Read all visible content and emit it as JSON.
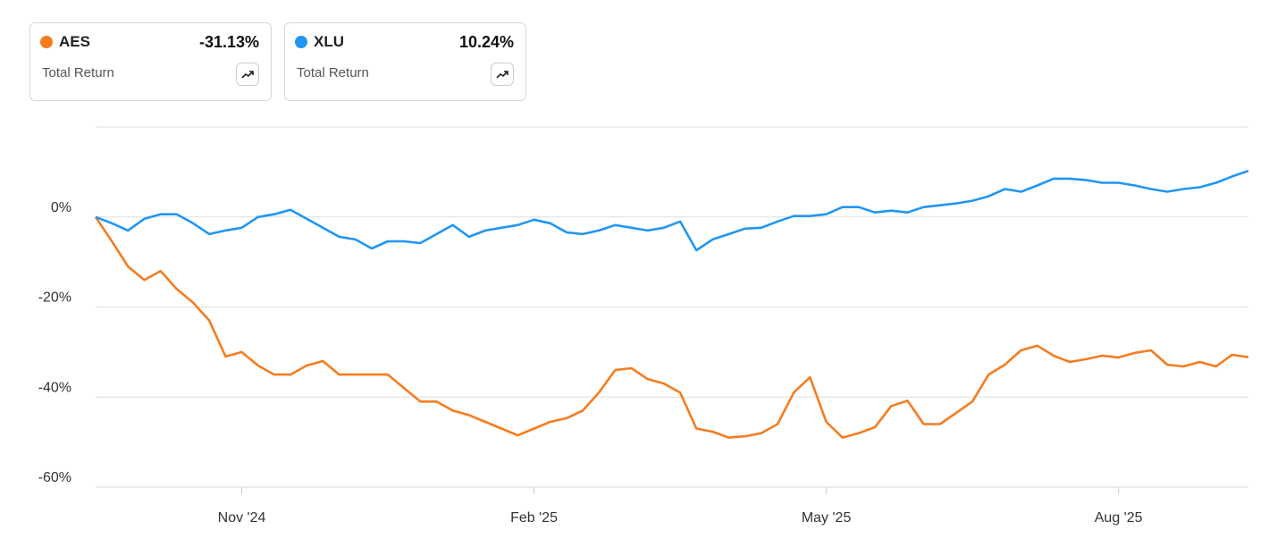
{
  "chart_data": {
    "type": "line",
    "categories": [
      null,
      null,
      null,
      null,
      null,
      null,
      null,
      null,
      null,
      "Nov '24",
      null,
      null,
      null,
      null,
      null,
      null,
      null,
      null,
      null,
      null,
      null,
      null,
      null,
      null,
      null,
      null,
      null,
      "Feb '25",
      null,
      null,
      null,
      null,
      null,
      null,
      null,
      null,
      null,
      null,
      null,
      null,
      null,
      null,
      null,
      null,
      null,
      "May '25",
      null,
      null,
      null,
      null,
      null,
      null,
      null,
      null,
      null,
      null,
      null,
      null,
      null,
      null,
      null,
      null,
      null,
      "Aug '25",
      null,
      null,
      null,
      null,
      null,
      null,
      null,
      null
    ],
    "series": [
      {
        "name": "AES",
        "color": "#f57c1f",
        "summary": -31.13,
        "summary_label": "-31.13%",
        "summary_caption": "Total Return",
        "values": [
          0,
          -5.4,
          -11,
          -14,
          -12,
          -16,
          -19,
          -23,
          -31,
          -30,
          -33,
          -35,
          -35,
          -33,
          -32,
          -35,
          -35,
          -35,
          -35,
          -38,
          -41,
          -41,
          -43,
          -44,
          -45.5,
          -47,
          -48.5,
          -47,
          -45.5,
          -44.7,
          -43,
          -39,
          -34,
          -33.6,
          -36,
          -37,
          -39,
          -47,
          -47.7,
          -49,
          -48.7,
          -48,
          -46,
          -39,
          -35.6,
          -45.5,
          -49,
          -48,
          -46.7,
          -42,
          -40.8,
          -46,
          -46,
          -43.5,
          -41,
          -35,
          -32.8,
          -29.6,
          -28.6,
          -30.8,
          -32.2,
          -31.6,
          -30.8,
          -31.2,
          -30.2,
          -29.6,
          -32.8,
          -33.2,
          -32.2,
          -33.2,
          -30.6,
          -31.13
        ]
      },
      {
        "name": "XLU",
        "color": "#2196f3",
        "summary": 10.24,
        "summary_label": "10.24%",
        "summary_caption": "Total Return",
        "values": [
          0,
          -1.4,
          -3,
          -0.4,
          0.6,
          0.6,
          -1.4,
          -3.8,
          -3,
          -2.4,
          0,
          0.6,
          1.6,
          -0.4,
          -2.4,
          -4.4,
          -5,
          -7,
          -5.4,
          -5.4,
          -5.8,
          -3.8,
          -1.8,
          -4.4,
          -3,
          -2.4,
          -1.8,
          -0.6,
          -1.4,
          -3.4,
          -3.8,
          -3,
          -1.8,
          -2.4,
          -3,
          -2.4,
          -1,
          -7.4,
          -5,
          -3.8,
          -2.6,
          -2.4,
          -1,
          0.2,
          0.2,
          0.6,
          2.2,
          2.2,
          1,
          1.4,
          1,
          2.2,
          2.6,
          3,
          3.6,
          4.6,
          6.2,
          5.6,
          7,
          8.5,
          8.5,
          8.2,
          7.6,
          7.6,
          7,
          6.2,
          5.6,
          6.2,
          6.6,
          7.6,
          9,
          10.24
        ]
      }
    ],
    "ylim": [
      -60,
      20
    ],
    "yticks": [
      {
        "value": 0,
        "label": "0%"
      },
      {
        "value": -20,
        "label": "-20%"
      },
      {
        "value": -40,
        "label": "-40%"
      },
      {
        "value": -60,
        "label": "-60%"
      }
    ],
    "grid": true
  }
}
